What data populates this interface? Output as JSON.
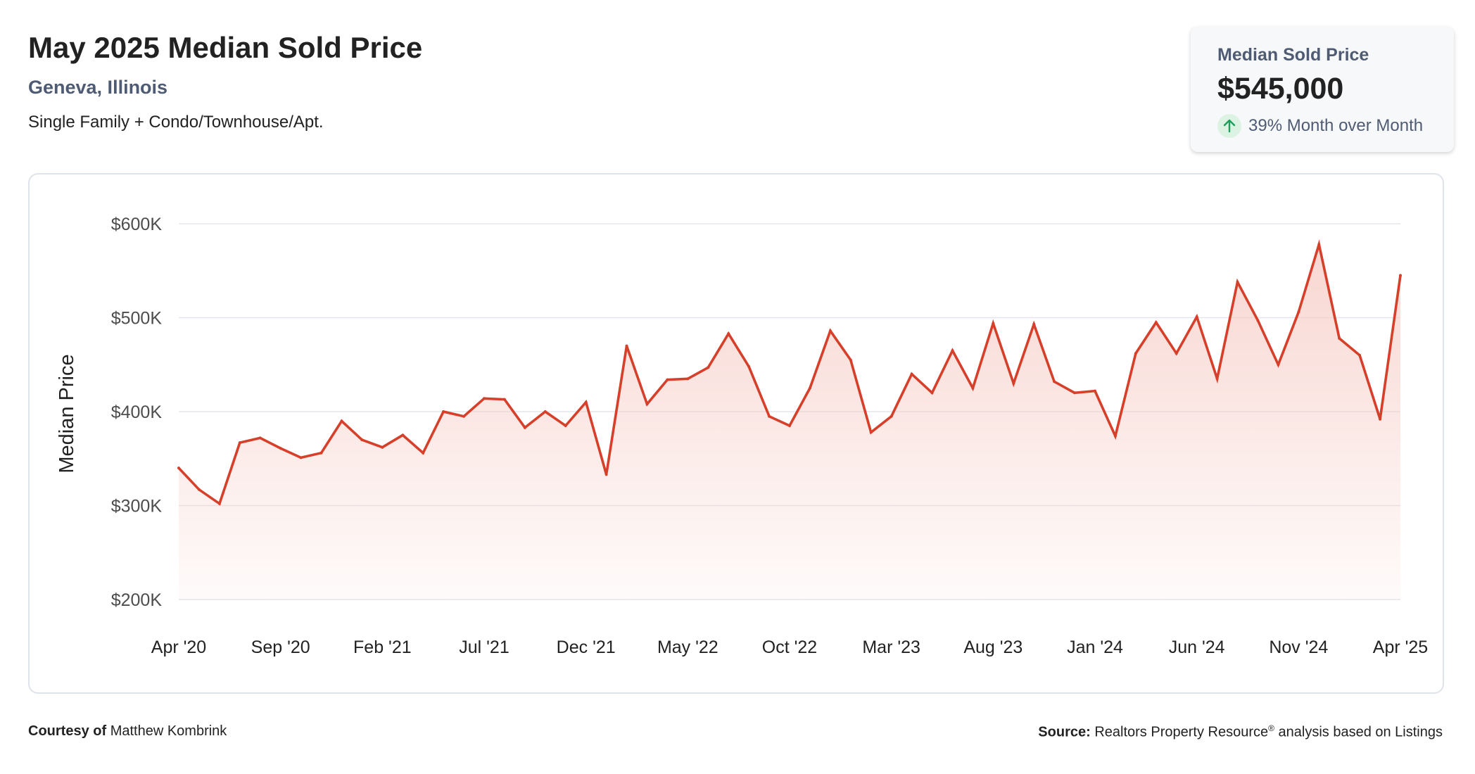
{
  "header": {
    "title": "May 2025 Median Sold Price",
    "location": "Geneva, Illinois",
    "property_types": "Single Family + Condo/Townhouse/Apt."
  },
  "summary_card": {
    "label": "Median Sold Price",
    "value": "$545,000",
    "change": "39% Month over Month",
    "change_icon": "arrow-up-icon",
    "change_color": "#1e9e5a"
  },
  "footer": {
    "courtesy_label": "Courtesy of",
    "courtesy_name": "Matthew Kombrink",
    "source_label": "Source:",
    "source_name": "Realtors Property Resource",
    "source_mark": "®",
    "source_suffix": "analysis based on Listings"
  },
  "chart_data": {
    "type": "area",
    "ylabel": "Median Price",
    "xlabel": "",
    "ylim": [
      200000,
      600000
    ],
    "y_ticks": [
      200000,
      300000,
      400000,
      500000,
      600000
    ],
    "y_tick_labels": [
      "$200K",
      "$300K",
      "$400K",
      "$500K",
      "$600K"
    ],
    "x_tick_labels": [
      "Apr '20",
      "Sep '20",
      "Feb '21",
      "Jul '21",
      "Dec '21",
      "May '22",
      "Oct '22",
      "Mar '23",
      "Aug '23",
      "Jan '24",
      "Jun '24",
      "Nov '24",
      "Apr '25"
    ],
    "x_start": "Apr '20",
    "x_end": "Apr '25",
    "line_color": "#d6402b",
    "fill_color": "#f6c9c2",
    "grid": true,
    "series": [
      {
        "values": [
          340000,
          317000,
          302000,
          367000,
          372000,
          361000,
          351000,
          356000,
          390000,
          370000,
          362000,
          375000,
          356000,
          400000,
          395000,
          414000,
          413000,
          383000,
          400000,
          385000,
          410000,
          333000,
          470000,
          408000,
          434000,
          435000,
          447000,
          483000,
          448000,
          395000,
          385000,
          425000,
          486000,
          455000,
          378000,
          395000,
          440000,
          420000,
          465000,
          425000,
          494000,
          430000,
          493000,
          432000,
          420000,
          422000,
          374000,
          462000,
          495000,
          462000,
          501000,
          435000,
          538000,
          497000,
          450000,
          506000,
          578000,
          478000,
          460000,
          392000,
          545000
        ]
      }
    ]
  }
}
